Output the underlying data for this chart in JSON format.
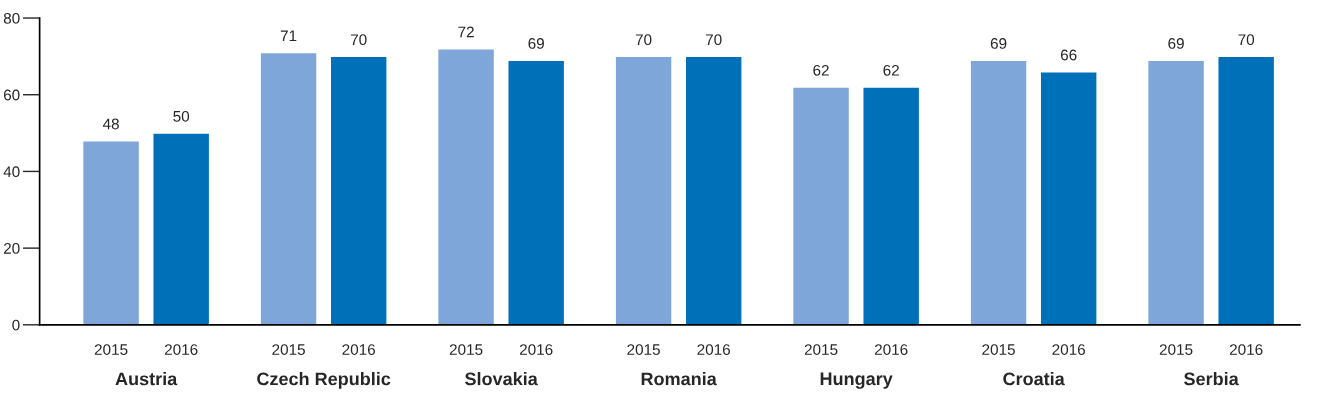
{
  "chart_data": {
    "type": "bar",
    "categories": [
      "Austria",
      "Czech Republic",
      "Slovakia",
      "Romania",
      "Hungary",
      "Croatia",
      "Serbia"
    ],
    "series": [
      {
        "name": "2015",
        "color": "#7ea6d8",
        "values": [
          48,
          71,
          72,
          70,
          62,
          69,
          69
        ]
      },
      {
        "name": "2016",
        "color": "#0070b8",
        "values": [
          50,
          70,
          69,
          70,
          62,
          66,
          70
        ]
      }
    ],
    "ylim": [
      0,
      80
    ],
    "yticks": [
      0,
      20,
      40,
      60,
      80
    ],
    "grid": false,
    "legend": false,
    "data_labels": true
  }
}
